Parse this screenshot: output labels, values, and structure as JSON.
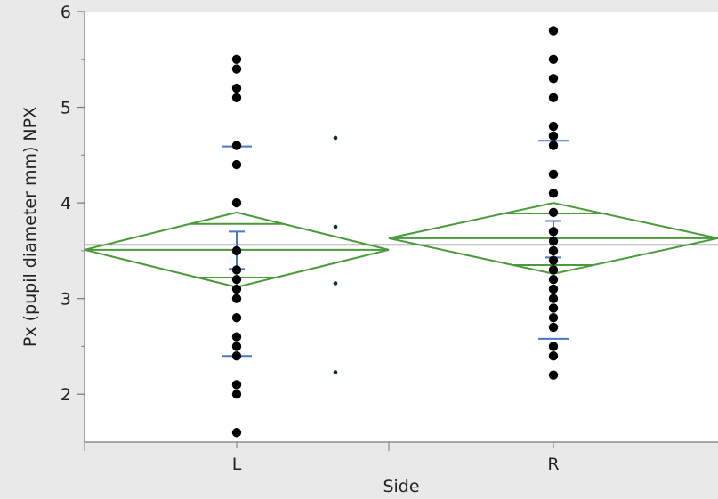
{
  "chart_data": {
    "type": "scatter",
    "subtype": "one-way ANOVA means diamonds with quantile-like markers",
    "xlabel": "Side",
    "ylabel": "Px (pupil diameter mm) NPX",
    "categories": [
      "L",
      "R"
    ],
    "ylim": [
      1.5,
      6
    ],
    "yticks": [
      2,
      3,
      4,
      5,
      6
    ],
    "grid": false,
    "grand_mean": 3.56,
    "series": [
      {
        "category": "L",
        "points": [
          5.5,
          5.4,
          5.2,
          5.1,
          4.6,
          4.4,
          4.0,
          3.5,
          3.3,
          3.2,
          3.1,
          3.0,
          2.8,
          2.6,
          2.5,
          2.4,
          2.1,
          2.0,
          1.6
        ],
        "mean": 3.51,
        "ci": [
          3.12,
          3.9
        ],
        "overlap_marks": [
          3.22,
          3.78
        ],
        "quantile_marks": [
          2.4,
          4.59
        ],
        "std_error_bar": [
          3.31,
          3.7
        ]
      },
      {
        "category": "R",
        "points": [
          5.8,
          5.5,
          5.3,
          5.1,
          4.8,
          4.7,
          4.6,
          4.3,
          4.1,
          3.9,
          3.7,
          3.6,
          3.5,
          3.4,
          3.3,
          3.2,
          3.1,
          3.0,
          2.9,
          2.8,
          2.7,
          2.5,
          2.4,
          2.2
        ],
        "mean": 3.63,
        "ci": [
          3.26,
          4.0
        ],
        "overlap_marks": [
          3.35,
          3.89
        ],
        "quantile_marks": [
          2.58,
          4.65
        ],
        "std_error_bar": [
          3.43,
          3.81
        ]
      }
    ],
    "unlabeled_points": {
      "x_position": "between L and R",
      "values": [
        4.68,
        3.75,
        3.16,
        2.23
      ]
    },
    "colors": {
      "points": "#000000",
      "diamond": "#4a9a3a",
      "quantile_marks": "#4a78c8",
      "grand_mean": "#666666",
      "background": "#e9e9e9",
      "plot_area": "#ffffff"
    }
  }
}
